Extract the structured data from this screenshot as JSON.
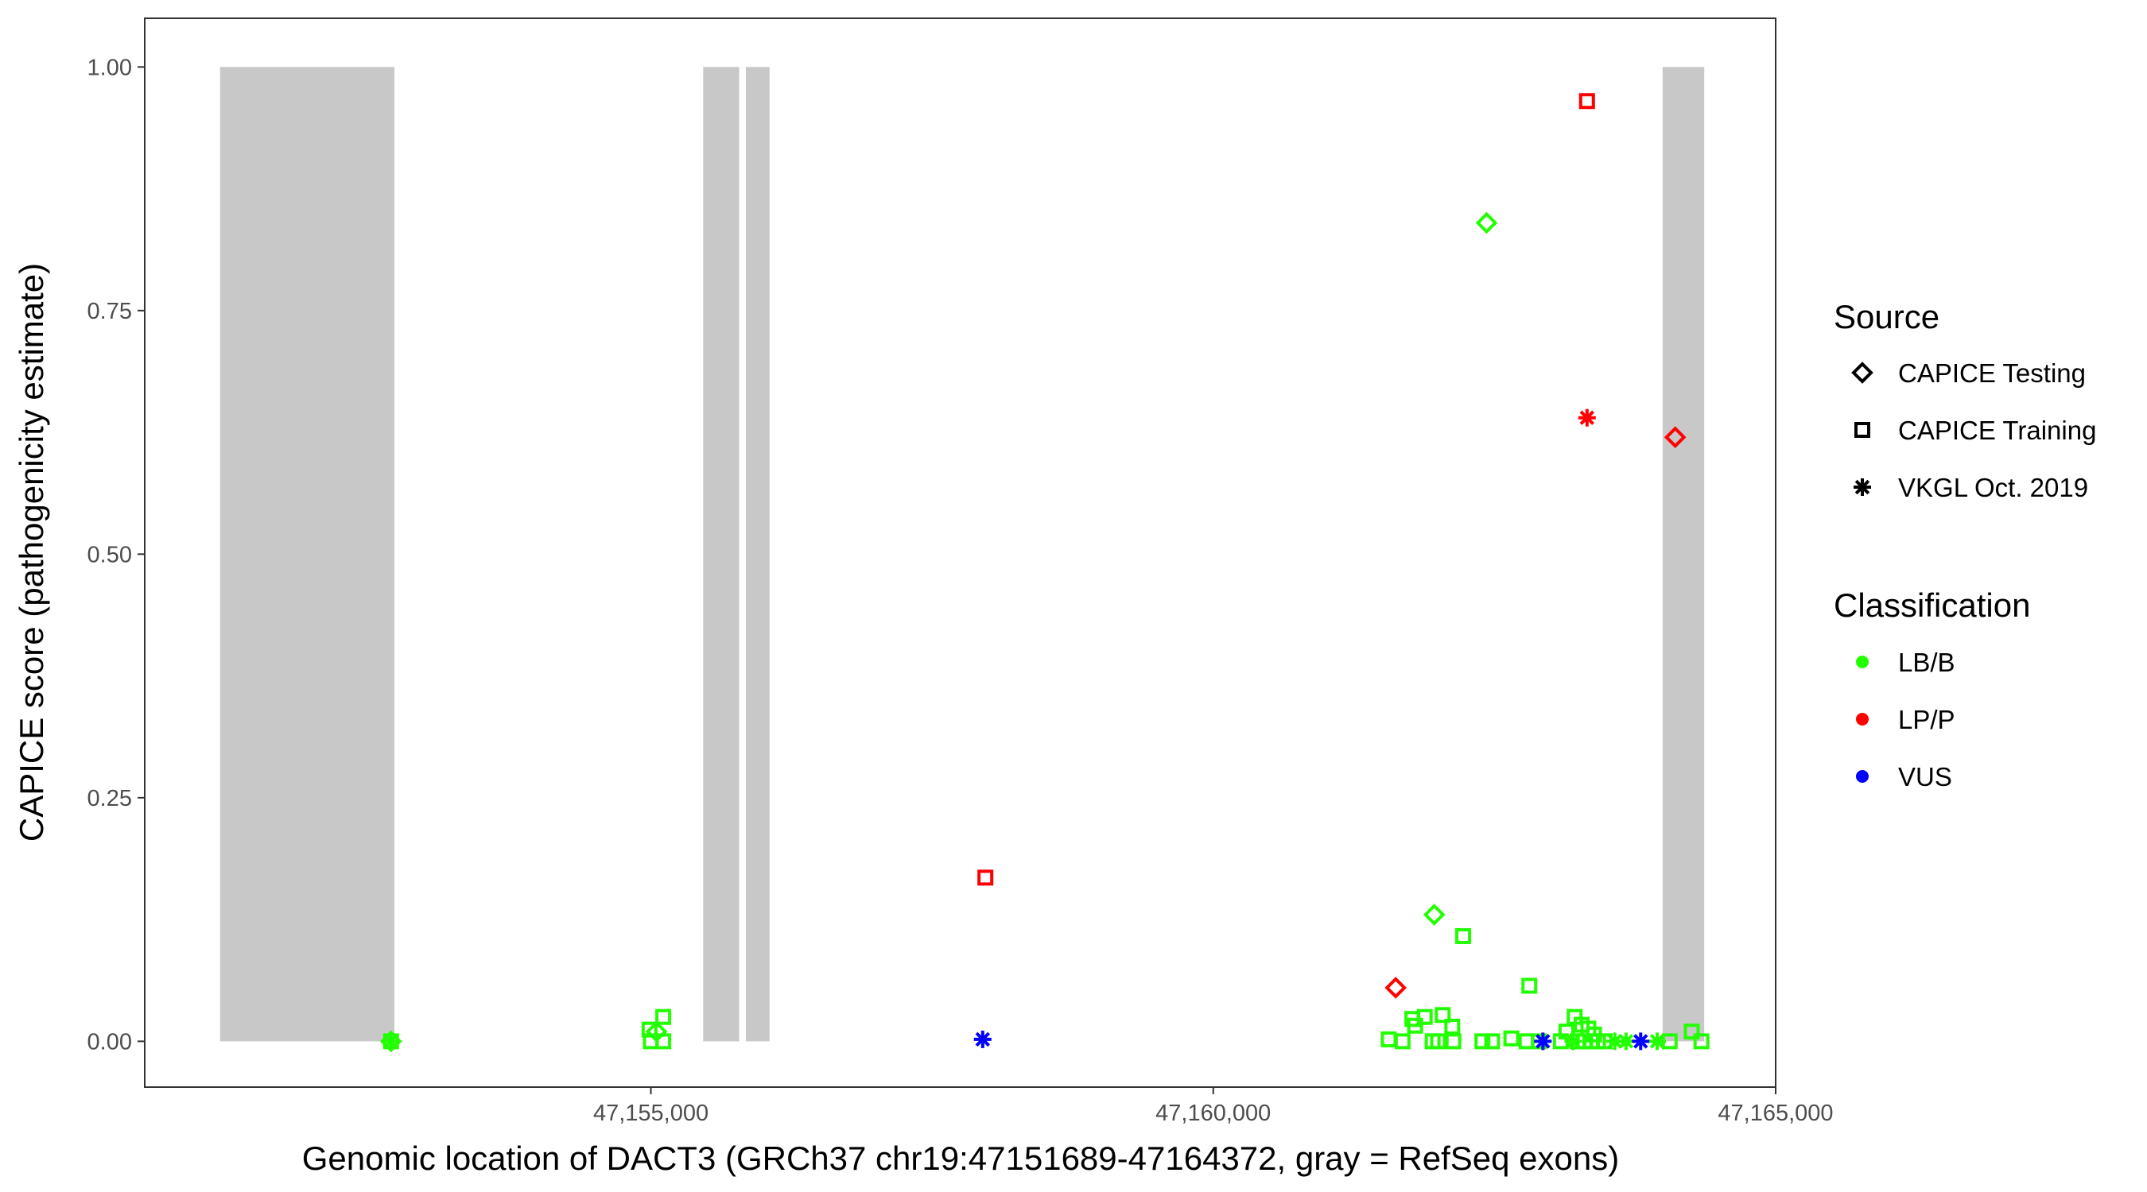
{
  "chart_data": {
    "type": "scatter",
    "xlabel": "Genomic location of DACT3 (GRCh37 chr19:47151689-47164372, gray = RefSeq exons)",
    "ylabel": "CAPICE score (pathogenicity estimate)",
    "xlim": [
      47150500,
      47165000
    ],
    "ylim": [
      -0.047,
      1.05
    ],
    "x_ticks": [
      47155000,
      47160000,
      47165000
    ],
    "x_tick_labels": [
      "47,155,000",
      "47,160,000",
      "47,165,000"
    ],
    "y_ticks": [
      0,
      0.25,
      0.5,
      0.75,
      1.0
    ],
    "y_tick_labels": [
      "0.00",
      "0.25",
      "0.50",
      "0.75",
      "1.00"
    ],
    "grid": false,
    "exons": [
      [
        47151170,
        47152720
      ],
      [
        47155465,
        47155785
      ],
      [
        47155845,
        47156055
      ],
      [
        47163995,
        47164365
      ]
    ],
    "exon_color": "#c8c8c8",
    "legend": {
      "placement": "right",
      "source_title": "Source",
      "source_items": [
        {
          "label": "CAPICE Testing",
          "shape": "diamond"
        },
        {
          "label": "CAPICE Training",
          "shape": "square"
        },
        {
          "label": "VKGL Oct. 2019",
          "shape": "asterisk"
        }
      ],
      "class_title": "Classification",
      "class_items": [
        {
          "label": "LB/B",
          "color": "#22ff00"
        },
        {
          "label": "LP/P",
          "color": "#ff0000"
        },
        {
          "label": "VUS",
          "color": "#0000ff"
        }
      ]
    },
    "points": [
      {
        "x": 47152690,
        "y": 0.0,
        "source": "CAPICE Training",
        "class": "LB/B"
      },
      {
        "x": 47152690,
        "y": 0.0,
        "source": "CAPICE Testing",
        "class": "LB/B"
      },
      {
        "x": 47152690,
        "y": 0.0,
        "source": "VKGL Oct. 2019",
        "class": "LB/B"
      },
      {
        "x": 47154988,
        "y": 0.012,
        "source": "CAPICE Training",
        "class": "LB/B"
      },
      {
        "x": 47155110,
        "y": 0.025,
        "source": "CAPICE Training",
        "class": "LB/B"
      },
      {
        "x": 47155000,
        "y": 0.0,
        "source": "CAPICE Training",
        "class": "LB/B"
      },
      {
        "x": 47155110,
        "y": 0.0,
        "source": "CAPICE Training",
        "class": "LB/B"
      },
      {
        "x": 47155050,
        "y": 0.01,
        "source": "CAPICE Testing",
        "class": "LB/B"
      },
      {
        "x": 47157974,
        "y": 0.168,
        "source": "CAPICE Training",
        "class": "LP/P"
      },
      {
        "x": 47157950,
        "y": 0.002,
        "source": "VKGL Oct. 2019",
        "class": "VUS"
      },
      {
        "x": 47162430,
        "y": 0.84,
        "source": "CAPICE Testing",
        "class": "LB/B"
      },
      {
        "x": 47163323,
        "y": 0.965,
        "source": "CAPICE Training",
        "class": "LP/P"
      },
      {
        "x": 47163323,
        "y": 0.64,
        "source": "VKGL Oct. 2019",
        "class": "LP/P"
      },
      {
        "x": 47164107,
        "y": 0.62,
        "source": "CAPICE Testing",
        "class": "LP/P"
      },
      {
        "x": 47161965,
        "y": 0.13,
        "source": "CAPICE Testing",
        "class": "LB/B"
      },
      {
        "x": 47162222,
        "y": 0.108,
        "source": "CAPICE Training",
        "class": "LB/B"
      },
      {
        "x": 47161622,
        "y": 0.055,
        "source": "CAPICE Testing",
        "class": "LP/P"
      },
      {
        "x": 47162810,
        "y": 0.057,
        "source": "CAPICE Training",
        "class": "LB/B"
      },
      {
        "x": 47161560,
        "y": 0.002,
        "source": "CAPICE Training",
        "class": "LB/B"
      },
      {
        "x": 47161683,
        "y": 0.0,
        "source": "CAPICE Training",
        "class": "LB/B"
      },
      {
        "x": 47161770,
        "y": 0.023,
        "source": "CAPICE Training",
        "class": "LB/B"
      },
      {
        "x": 47161795,
        "y": 0.016,
        "source": "CAPICE Training",
        "class": "LB/B"
      },
      {
        "x": 47161880,
        "y": 0.025,
        "source": "CAPICE Training",
        "class": "LB/B"
      },
      {
        "x": 47162040,
        "y": 0.027,
        "source": "CAPICE Training",
        "class": "LB/B"
      },
      {
        "x": 47162125,
        "y": 0.015,
        "source": "CAPICE Training",
        "class": "LB/B"
      },
      {
        "x": 47161950,
        "y": 0.0,
        "source": "CAPICE Training",
        "class": "LB/B"
      },
      {
        "x": 47161999,
        "y": 0.0,
        "source": "CAPICE Training",
        "class": "LB/B"
      },
      {
        "x": 47162135,
        "y": 0.0,
        "source": "CAPICE Training",
        "class": "LB/B"
      },
      {
        "x": 47162393,
        "y": 0.0,
        "source": "CAPICE Training",
        "class": "LB/B"
      },
      {
        "x": 47162480,
        "y": 0.0,
        "source": "CAPICE Training",
        "class": "LB/B"
      },
      {
        "x": 47162650,
        "y": 0.003,
        "source": "CAPICE Training",
        "class": "LB/B"
      },
      {
        "x": 47162785,
        "y": 0.0,
        "source": "CAPICE Training",
        "class": "LB/B"
      },
      {
        "x": 47162895,
        "y": 0.0,
        "source": "CAPICE Training",
        "class": "LB/B"
      },
      {
        "x": 47163090,
        "y": 0.0,
        "source": "CAPICE Training",
        "class": "LB/B"
      },
      {
        "x": 47163213,
        "y": 0.025,
        "source": "CAPICE Training",
        "class": "LB/B"
      },
      {
        "x": 47163140,
        "y": 0.01,
        "source": "CAPICE Training",
        "class": "LB/B"
      },
      {
        "x": 47163275,
        "y": 0.017,
        "source": "CAPICE Training",
        "class": "LB/B"
      },
      {
        "x": 47163335,
        "y": 0.013,
        "source": "CAPICE Training",
        "class": "LB/B"
      },
      {
        "x": 47163385,
        "y": 0.007,
        "source": "CAPICE Training",
        "class": "LB/B"
      },
      {
        "x": 47163240,
        "y": 0.0,
        "source": "CAPICE Training",
        "class": "LB/B"
      },
      {
        "x": 47163300,
        "y": 0.0,
        "source": "CAPICE Training",
        "class": "LB/B"
      },
      {
        "x": 47163360,
        "y": 0.0,
        "source": "CAPICE Training",
        "class": "LB/B"
      },
      {
        "x": 47163420,
        "y": 0.0,
        "source": "CAPICE Training",
        "class": "LB/B"
      },
      {
        "x": 47163480,
        "y": 0.0,
        "source": "CAPICE Training",
        "class": "LB/B"
      },
      {
        "x": 47164058,
        "y": 0.0,
        "source": "CAPICE Training",
        "class": "LB/B"
      },
      {
        "x": 47164340,
        "y": 0.0,
        "source": "CAPICE Training",
        "class": "LB/B"
      },
      {
        "x": 47164254,
        "y": 0.01,
        "source": "CAPICE Training",
        "class": "LB/B"
      },
      {
        "x": 47163200,
        "y": 0.0,
        "source": "VKGL Oct. 2019",
        "class": "LB/B"
      },
      {
        "x": 47163570,
        "y": 0.0,
        "source": "VKGL Oct. 2019",
        "class": "LB/B"
      },
      {
        "x": 47163670,
        "y": 0.0,
        "source": "VKGL Oct. 2019",
        "class": "LB/B"
      },
      {
        "x": 47163947,
        "y": 0.0,
        "source": "VKGL Oct. 2019",
        "class": "LB/B"
      },
      {
        "x": 47162931,
        "y": 0.0,
        "source": "VKGL Oct. 2019",
        "class": "VUS"
      },
      {
        "x": 47163800,
        "y": 0.0,
        "source": "VKGL Oct. 2019",
        "class": "VUS"
      }
    ]
  }
}
